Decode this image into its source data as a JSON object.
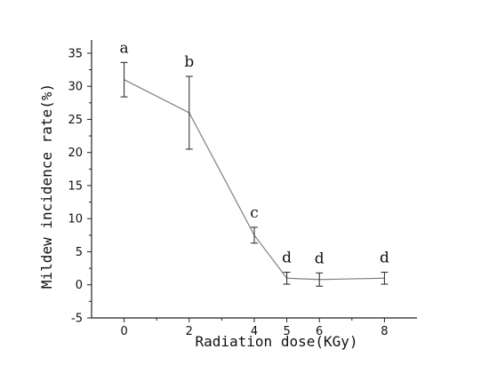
{
  "chart_data": {
    "type": "line",
    "xlabel": "Radiation dose(KGy)",
    "ylabel": "Mildew incidence rate(%)",
    "xlim": [
      -1,
      9
    ],
    "ylim": [
      -5,
      37
    ],
    "x_ticks": [
      0,
      2,
      4,
      5,
      6,
      8
    ],
    "y_ticks": [
      -5,
      0,
      5,
      10,
      15,
      20,
      25,
      30,
      35
    ],
    "grid": false,
    "legend": "none",
    "series": [
      {
        "x": [
          0,
          2,
          4,
          5,
          6,
          8
        ],
        "y": [
          31,
          26,
          7.5,
          1,
          0.8,
          1
        ],
        "error": [
          2.6,
          5.5,
          1.2,
          0.9,
          1.0,
          0.9
        ],
        "labels": [
          "a",
          "b",
          "c",
          "d",
          "d",
          "d"
        ]
      }
    ],
    "line_color": "#808080",
    "axis_color": "#222222"
  }
}
